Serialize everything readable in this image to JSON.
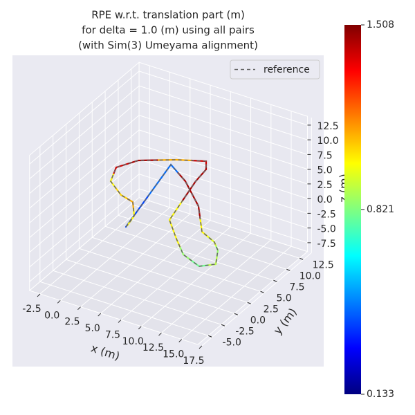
{
  "chart_data": {
    "type": "line3d",
    "title": [
      "RPE w.r.t. translation part (m)",
      "for delta = 1.0 (m) using all pairs",
      "(with Sim(3) Umeyama alignment)"
    ],
    "xlabel": "x (m)",
    "ylabel": "y (m)",
    "zlabel": "z (m)",
    "xlim": [
      -3.8,
      17
    ],
    "ylim": [
      -7,
      14
    ],
    "zlim": [
      -9,
      14
    ],
    "xticks": [
      -2.5,
      {
        "value": 0,
        "label": "0.0"
      },
      2.5,
      {
        "value": 5,
        "label": "5.0"
      },
      7.5,
      {
        "value": 10,
        "label": "10.0"
      },
      12.5,
      {
        "value": 15,
        "label": "15.0"
      },
      17.5
    ],
    "yticks": [
      {
        "value": -5,
        "label": "-5.0"
      },
      -2.5,
      {
        "value": 0,
        "label": "0.0"
      },
      2.5,
      {
        "value": 5,
        "label": "5.0"
      },
      7.5,
      {
        "value": 10,
        "label": "10.0"
      },
      12.5
    ],
    "zticks": [
      -7.5,
      {
        "value": -5,
        "label": "-5.0"
      },
      -2.5,
      {
        "value": 0,
        "label": "0.0"
      },
      2.5,
      {
        "value": 5,
        "label": "5.0"
      },
      7.5,
      {
        "value": 10,
        "label": "10.0"
      },
      12.5
    ],
    "series": [
      {
        "name": "reference",
        "color": "#666666",
        "dashed": true,
        "x": [
          3.7,
          1.16,
          4.21,
          8.02,
          11.04,
          13.25,
          14.44,
          15.71,
          14.44,
          11.77,
          9.47,
          6.88,
          5.14,
          4.83,
          5.2,
          1.14,
          -2.2,
          -3.45,
          -2.49,
          -0.09,
          1.69,
          3.28,
          3.68
        ],
        "y": [
          -0.17,
          12.4,
          10.44,
          7.04,
          3.03,
          1.98,
          0.8,
          -1.57,
          -2.79,
          -1.69,
          0.55,
          3.25,
          10.98,
          13.46,
          12.89,
          13.48,
          11.37,
          9.07,
          6.51,
          4.79,
          4.27,
          2.08,
          0.13
        ],
        "z": [
          0,
          0,
          0,
          0,
          0,
          0,
          0,
          0,
          0,
          0,
          0,
          0,
          0,
          0,
          2,
          0,
          0,
          0,
          0,
          0,
          0,
          0,
          0
        ]
      }
    ],
    "values": [
      0.4,
      0.45,
      1.45,
      1.45,
      1.0,
      0.95,
      0.85,
      0.9,
      0.8,
      0.85,
      1.0,
      1.0,
      1.45,
      1.45,
      1.4,
      1.1,
      1.45,
      1.4,
      1.0,
      1.05,
      1.1,
      1.0,
      1.0
    ],
    "colormap": "jet",
    "colorbar": {
      "lim": [
        0.133,
        1.508
      ],
      "ticks": [
        0.133,
        0.821,
        1.508
      ]
    },
    "legend": "upper right"
  }
}
